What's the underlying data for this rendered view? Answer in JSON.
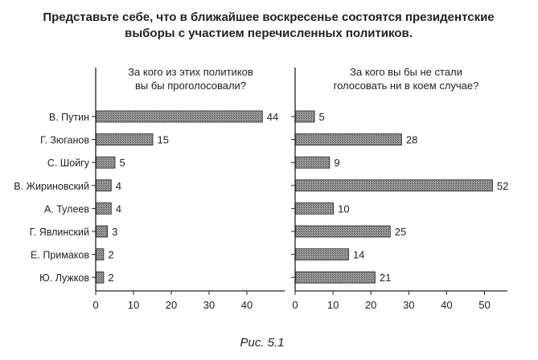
{
  "title": {
    "line1": "Представьте себе, что в ближайшее воскресенье состоятся президентские",
    "line2": "выборы с участием перечисленных политиков."
  },
  "caption": "Рис. 5.1",
  "colors": {
    "bar_fill": "#8c8c8c",
    "bar_stroke": "#222222",
    "axis": "#222222",
    "text": "#222222"
  },
  "chart_data": [
    {
      "type": "bar",
      "orientation": "horizontal",
      "title": [
        "За кого из этих политиков",
        "вы бы проголосовали?"
      ],
      "categories": [
        "В. Путин",
        "Г. Зюганов",
        "С. Шойгу",
        "В. Жириновский",
        "А. Тулеев",
        "Г. Явлинский",
        "Е. Примаков",
        "Ю. Лужков"
      ],
      "values": [
        44,
        15,
        5,
        4,
        4,
        3,
        2,
        2
      ],
      "xlim": [
        0,
        50
      ],
      "xticks": [
        0,
        10,
        20,
        30,
        40
      ],
      "grid": false
    },
    {
      "type": "bar",
      "orientation": "horizontal",
      "title": [
        "За кого вы бы не стали",
        "голосовать ни в коем случае?"
      ],
      "categories": [
        "В. Путин",
        "Г. Зюганов",
        "С. Шойгу",
        "В. Жириновский",
        "А. Тулеев",
        "Г. Явлинский",
        "Е. Примаков",
        "Ю. Лужков"
      ],
      "values": [
        5,
        28,
        9,
        52,
        10,
        25,
        14,
        21
      ],
      "xlim": [
        0,
        56
      ],
      "xticks": [
        0,
        10,
        20,
        30,
        40,
        50
      ],
      "grid": false
    }
  ]
}
